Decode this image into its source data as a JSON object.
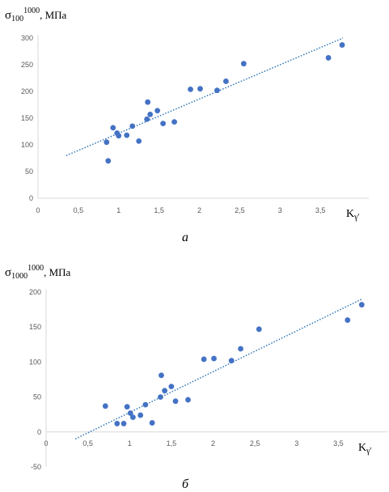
{
  "chart_data": [
    {
      "type": "scatter",
      "ylabel_main": "σ",
      "ylabel_sub": "100",
      "ylabel_sup": "1000",
      "ylabel_unit": ", МПа",
      "xlabel_main": "K",
      "xlabel_sub": "γ'",
      "caption": "а",
      "xlim": [
        0,
        4
      ],
      "ylim": [
        0,
        300
      ],
      "x_ticks": [
        "0",
        "0,5",
        "1",
        "1,5",
        "2",
        "2,5",
        "3",
        "3,5"
      ],
      "y_ticks": [
        "0",
        "50",
        "100",
        "150",
        "200",
        "250",
        "300"
      ],
      "marker_color": "#4472C4",
      "trendline": {
        "style": "dotted",
        "color": "#2E75B6",
        "x": [
          0.35,
          3.78
        ],
        "y": [
          80,
          300
        ]
      },
      "series": [
        {
          "x": [
            0.85,
            0.87,
            0.93,
            0.98,
            1.0,
            1.1,
            1.17,
            1.25,
            1.35,
            1.36,
            1.39,
            1.48,
            1.55,
            1.69,
            1.89,
            2.01,
            2.22,
            2.33,
            2.55,
            3.6,
            3.77
          ],
          "y": [
            105,
            70,
            132,
            122,
            117,
            118,
            135,
            107,
            148,
            180,
            157,
            164,
            140,
            143,
            204,
            205,
            202,
            219,
            252,
            263,
            287
          ]
        }
      ]
    },
    {
      "type": "scatter",
      "ylabel_main": "σ",
      "ylabel_sub": "1000",
      "ylabel_sup": "1000",
      "ylabel_unit": ", МПа",
      "xlabel_main": "K",
      "xlabel_sub": "γ'",
      "caption": "б",
      "xlim": [
        0,
        4
      ],
      "ylim": [
        -50,
        200
      ],
      "x_ticks": [
        "0",
        "0,5",
        "1",
        "1,5",
        "2",
        "2,5",
        "3",
        "3,5"
      ],
      "y_ticks": [
        "-50",
        "0",
        "50",
        "100",
        "150",
        "200"
      ],
      "marker_color": "#4472C4",
      "trendline": {
        "style": "dotted",
        "color": "#2E75B6",
        "x": [
          0.35,
          3.78
        ],
        "y": [
          -10,
          190
        ]
      },
      "series": [
        {
          "x": [
            0.71,
            0.85,
            0.93,
            0.97,
            1.01,
            1.04,
            1.13,
            1.19,
            1.27,
            1.37,
            1.38,
            1.42,
            1.5,
            1.55,
            1.7,
            1.89,
            2.01,
            2.22,
            2.33,
            2.55,
            3.61,
            3.78
          ],
          "y": [
            37,
            12,
            12,
            36,
            27,
            21,
            24,
            39,
            13,
            50,
            81,
            59,
            65,
            44,
            46,
            104,
            105,
            102,
            119,
            147,
            160,
            182
          ]
        }
      ]
    }
  ]
}
